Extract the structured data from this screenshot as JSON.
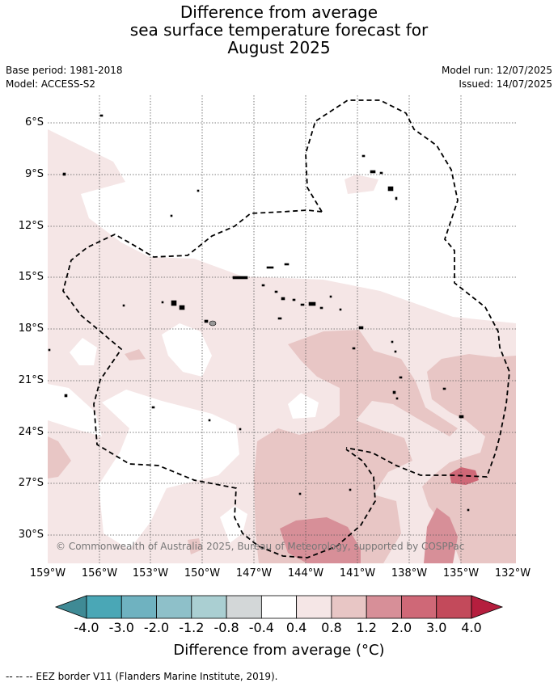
{
  "title": {
    "line1": "Difference from average",
    "line2": "sea surface temperature forecast for",
    "line3": "August 2025"
  },
  "meta": {
    "base_period": "Base period: 1981-2018",
    "model": "Model: ACCESS-S2",
    "model_run": "Model run: 12/07/2025",
    "issued": "Issued: 14/07/2025"
  },
  "map": {
    "lat_labels": [
      "6°S",
      "9°S",
      "12°S",
      "15°S",
      "18°S",
      "21°S",
      "24°S",
      "27°S",
      "30°S"
    ],
    "lon_labels": [
      "159°W",
      "156°W",
      "153°W",
      "150°W",
      "147°W",
      "144°W",
      "141°W",
      "138°W",
      "135°W",
      "132°W"
    ],
    "copyright": "© Commonwealth of Australia 2025, Bureau of Meteorology, supported by COSPPac",
    "grid": true,
    "eez_border": "dashed"
  },
  "colorbar": {
    "tick_labels": [
      "-4.0",
      "-3.0",
      "-2.0",
      "-1.2",
      "-0.8",
      "-0.4",
      "0.4",
      "0.8",
      "1.2",
      "2.0",
      "3.0",
      "4.0"
    ],
    "colors": [
      "#3f8a95",
      "#4aa7b6",
      "#6fb2c0",
      "#8ec0c9",
      "#aacfd2",
      "#d3d7d8",
      "#ffffff",
      "#f5e6e6",
      "#e8c6c5",
      "#d78f98",
      "#cf6877",
      "#c34a5b",
      "#b51e3e"
    ],
    "label": "Difference from average (°C)"
  },
  "footer": "--  --  -- EEZ border V11 (Flanders Marine Institute, 2019)."
}
